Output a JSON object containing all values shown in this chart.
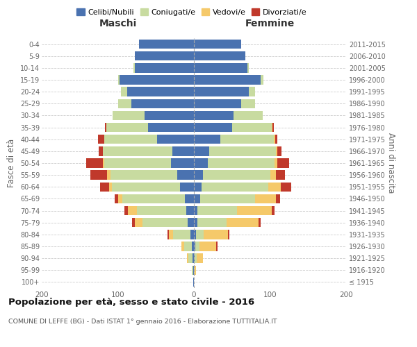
{
  "age_groups": [
    "100+",
    "95-99",
    "90-94",
    "85-89",
    "80-84",
    "75-79",
    "70-74",
    "65-69",
    "60-64",
    "55-59",
    "50-54",
    "45-49",
    "40-44",
    "35-39",
    "30-34",
    "25-29",
    "20-24",
    "15-19",
    "10-14",
    "5-9",
    "0-4"
  ],
  "birth_years": [
    "≤ 1915",
    "1916-1920",
    "1921-1925",
    "1926-1930",
    "1931-1935",
    "1936-1940",
    "1941-1945",
    "1946-1950",
    "1951-1955",
    "1956-1960",
    "1961-1965",
    "1966-1970",
    "1971-1975",
    "1976-1980",
    "1981-1985",
    "1986-1990",
    "1991-1995",
    "1996-2000",
    "2001-2005",
    "2006-2010",
    "2011-2015"
  ],
  "maschi": {
    "celibi": [
      1,
      1,
      2,
      3,
      5,
      8,
      10,
      12,
      18,
      22,
      30,
      28,
      48,
      60,
      65,
      82,
      88,
      98,
      78,
      78,
      72
    ],
    "coniugati": [
      0,
      2,
      5,
      10,
      22,
      60,
      65,
      82,
      90,
      88,
      88,
      92,
      70,
      55,
      42,
      18,
      8,
      2,
      1,
      0,
      0
    ],
    "vedovi": [
      0,
      0,
      2,
      3,
      6,
      10,
      12,
      6,
      3,
      4,
      2,
      0,
      0,
      0,
      0,
      0,
      0,
      0,
      0,
      0,
      0
    ],
    "divorziati": [
      0,
      0,
      0,
      0,
      2,
      3,
      4,
      4,
      12,
      22,
      22,
      5,
      8,
      2,
      0,
      0,
      0,
      0,
      0,
      0,
      0
    ]
  },
  "femmine": {
    "nubili": [
      0,
      0,
      1,
      2,
      3,
      5,
      5,
      8,
      10,
      12,
      18,
      20,
      35,
      50,
      52,
      62,
      72,
      88,
      70,
      68,
      62
    ],
    "coniugate": [
      0,
      1,
      3,
      5,
      10,
      38,
      52,
      72,
      88,
      88,
      88,
      88,
      70,
      52,
      38,
      18,
      8,
      3,
      2,
      0,
      0
    ],
    "vedove": [
      0,
      2,
      8,
      22,
      32,
      42,
      45,
      28,
      16,
      8,
      4,
      2,
      2,
      1,
      0,
      0,
      0,
      0,
      0,
      0,
      0
    ],
    "divorziate": [
      0,
      0,
      0,
      2,
      2,
      3,
      4,
      5,
      14,
      12,
      15,
      5,
      3,
      2,
      0,
      0,
      0,
      0,
      0,
      0,
      0
    ]
  },
  "colors": {
    "celibi": "#4a72b0",
    "coniugati": "#c8dba0",
    "vedovi": "#f5c96a",
    "divorziati": "#c0392b"
  },
  "xlim": 200,
  "title": "Popolazione per età, sesso e stato civile - 2016",
  "subtitle": "COMUNE DI LEFFE (BG) - Dati ISTAT 1° gennaio 2016 - Elaborazione TUTTITALIA.IT",
  "legend_labels": [
    "Celibi/Nubili",
    "Coniugati/e",
    "Vedovi/e",
    "Divorziati/e"
  ],
  "ylabel_left": "Fasce di età",
  "ylabel_right": "Anni di nascita"
}
